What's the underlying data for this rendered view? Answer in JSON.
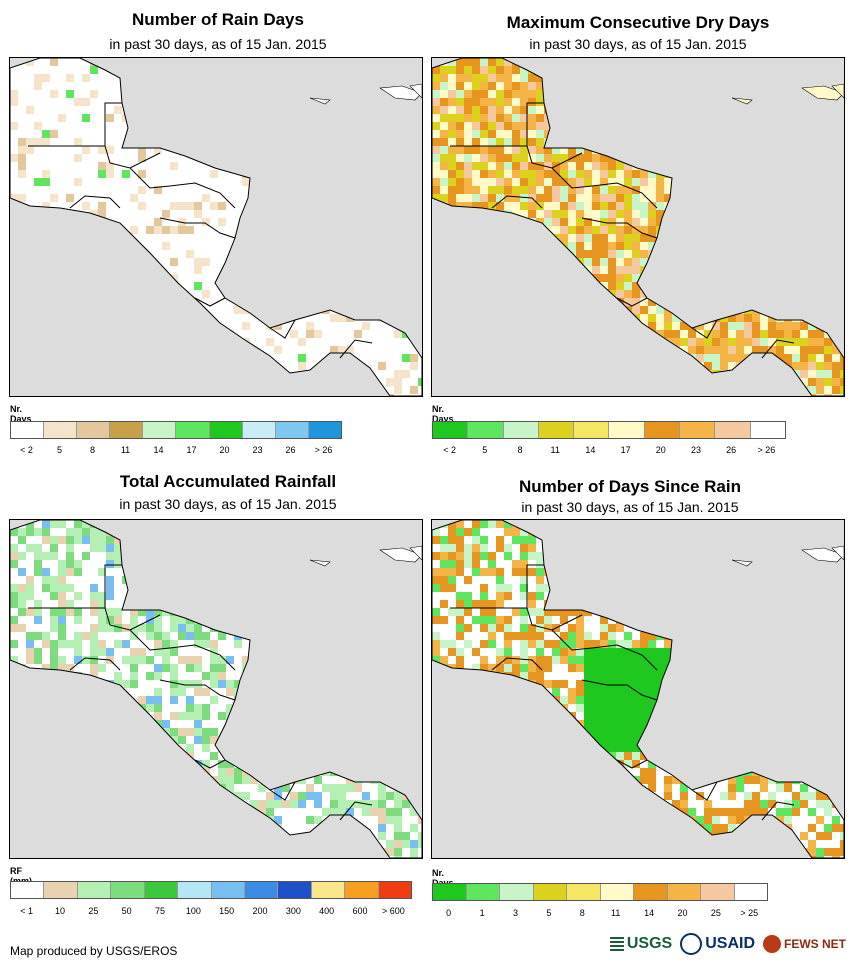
{
  "panels": [
    {
      "id": "rain-days",
      "title": "Number of Rain Days",
      "subtitle": "in past 30 days, as of 15 Jan. 2015",
      "legend_title": "Nr. Days",
      "legend_colors": [
        "#ffffff",
        "#f5e4ca",
        "#e2c89c",
        "#c8a04a",
        "#c8f5c8",
        "#5fe65f",
        "#1ec81e",
        "#c8ecf8",
        "#7ec8f0",
        "#1e96dc"
      ],
      "legend_labels": [
        "< 2",
        "5",
        "8",
        "11",
        "14",
        "17",
        "20",
        "23",
        "26",
        "> 26"
      ],
      "land_color": "#ffffff"
    },
    {
      "id": "dry-days",
      "title": "Maximum Consecutive Dry Days",
      "subtitle": "in past 30 days, as of 15 Jan. 2015",
      "legend_title": "Nr. Days",
      "legend_colors": [
        "#1ec81e",
        "#5fe65f",
        "#c8f5c8",
        "#dcd21e",
        "#f5e664",
        "#fffac8",
        "#e6961e",
        "#f5b446",
        "#f5c8a0",
        "#ffffff"
      ],
      "legend_labels": [
        "< 2",
        "5",
        "8",
        "11",
        "14",
        "17",
        "20",
        "23",
        "26",
        "> 26"
      ],
      "land_color": "#fffac8"
    },
    {
      "id": "rainfall",
      "title": "Total Accumulated Rainfall",
      "subtitle": "in past 30 days, as of 15 Jan. 2015",
      "legend_title": "RF (mm)",
      "legend_colors": [
        "#ffffff",
        "#e8d2b0",
        "#b4f0b4",
        "#7ddc7d",
        "#3cc83c",
        "#b4e6f5",
        "#78bef0",
        "#3c8ce6",
        "#1e50c8",
        "#fae68c",
        "#f5a01e",
        "#f03c14"
      ],
      "legend_labels": [
        "< 1",
        "10",
        "25",
        "50",
        "75",
        "100",
        "150",
        "200",
        "300",
        "400",
        "600",
        "> 600"
      ],
      "land_color": "#ffffff"
    },
    {
      "id": "since-rain",
      "title": "Number of Days Since Rain",
      "subtitle": "in past 30 days, as of 15 Jan. 2015",
      "legend_title": "Nr. Days",
      "legend_colors": [
        "#1ec81e",
        "#5fe65f",
        "#c8f5c8",
        "#dcd21e",
        "#f5e664",
        "#fffac8",
        "#e6961e",
        "#f5b446",
        "#f5c8a0",
        "#ffffff"
      ],
      "legend_labels": [
        "0",
        "1",
        "3",
        "5",
        "8",
        "11",
        "14",
        "20",
        "25",
        "> 25"
      ],
      "land_color": "#ffffff"
    }
  ],
  "footer": {
    "credit": "Map produced by USGS/EROS"
  },
  "logos": {
    "usgs": "USGS",
    "usaid": "USAID",
    "fews": "FEWS NET"
  }
}
